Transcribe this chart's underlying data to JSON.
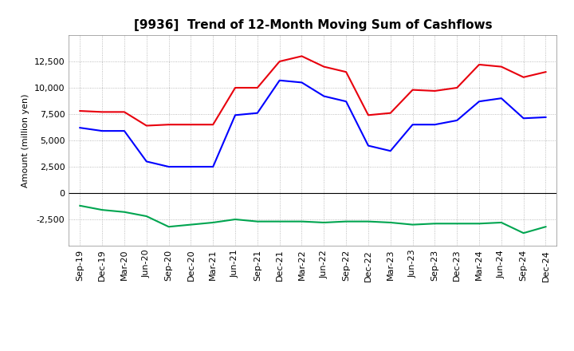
{
  "title": "[9936]  Trend of 12-Month Moving Sum of Cashflows",
  "ylabel": "Amount (million yen)",
  "x_labels": [
    "Sep-19",
    "Dec-19",
    "Mar-20",
    "Jun-20",
    "Sep-20",
    "Dec-20",
    "Mar-21",
    "Jun-21",
    "Sep-21",
    "Dec-21",
    "Mar-22",
    "Jun-22",
    "Sep-22",
    "Dec-22",
    "Mar-23",
    "Jun-23",
    "Sep-23",
    "Dec-23",
    "Mar-24",
    "Jun-24",
    "Sep-24",
    "Dec-24"
  ],
  "operating": [
    7800,
    7700,
    7700,
    6400,
    6500,
    6500,
    6500,
    10000,
    10000,
    12500,
    13000,
    12000,
    11500,
    7400,
    7600,
    9800,
    9700,
    10000,
    12200,
    12000,
    11000,
    11500
  ],
  "investing": [
    -1200,
    -1600,
    -1800,
    -2200,
    -3200,
    -3000,
    -2800,
    -2500,
    -2700,
    -2700,
    -2700,
    -2800,
    -2700,
    -2700,
    -2800,
    -3000,
    -2900,
    -2900,
    -2900,
    -2800,
    -3800,
    -3200
  ],
  "free": [
    6200,
    5900,
    5900,
    3000,
    2500,
    2500,
    2500,
    7400,
    7600,
    10700,
    10500,
    9200,
    8700,
    4500,
    4000,
    6500,
    6500,
    6900,
    8700,
    9000,
    7100,
    7200
  ],
  "operating_color": "#e8000d",
  "investing_color": "#00a550",
  "free_color": "#0000ff",
  "background_color": "#ffffff",
  "grid_color": "#aaaaaa",
  "ylim": [
    -5000,
    15000
  ],
  "yticks": [
    -2500,
    0,
    2500,
    5000,
    7500,
    10000,
    12500
  ],
  "title_fontsize": 11,
  "axis_fontsize": 8,
  "legend_fontsize": 9
}
